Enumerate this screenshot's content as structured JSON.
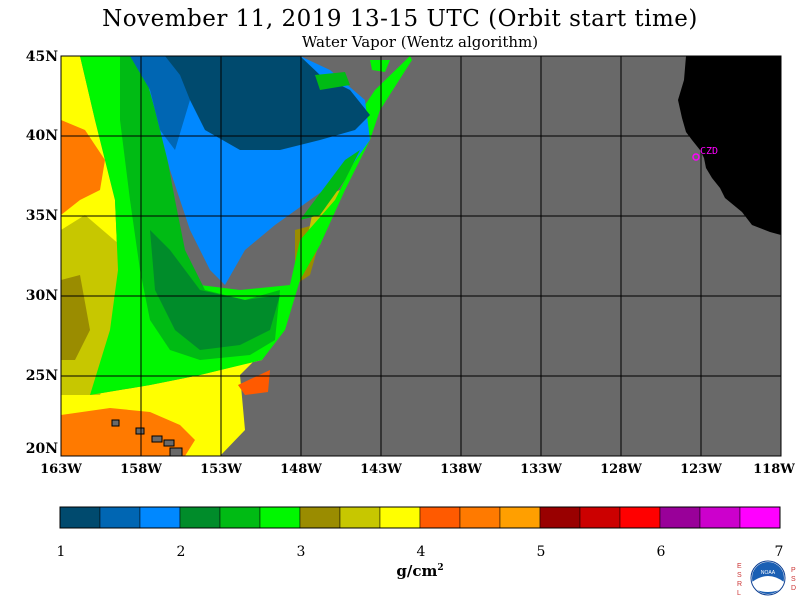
{
  "title": "November 11, 2019  13-15 UTC  (Orbit start time)",
  "subtitle": "Water Vapor (Wentz algorithm)",
  "lat_labels": [
    "45N",
    "40N",
    "35N",
    "30N",
    "25N",
    "20N"
  ],
  "lon_labels": [
    "163W",
    "158W",
    "153W",
    "148W",
    "143W",
    "138W",
    "133W",
    "128W",
    "123W",
    "118W"
  ],
  "station_label": "CZD",
  "colorbar": {
    "labels": [
      "1",
      "2",
      "3",
      "4",
      "5",
      "6",
      "7"
    ],
    "units": "g/cm",
    "units_exp": "2",
    "colors": [
      "#004a6e",
      "#0066b3",
      "#0088ff",
      "#008c2a",
      "#00bb14",
      "#00f700",
      "#9a8c00",
      "#c7c700",
      "#ffff00",
      "#ff5a00",
      "#ff7a00",
      "#ff9f00",
      "#990000",
      "#cc0000",
      "#ff0000",
      "#990099",
      "#cc00cc",
      "#ff00ff"
    ]
  },
  "map_colors": {
    "no_data": "#696969",
    "land": "#000000",
    "station": "#ff00ff"
  },
  "logo_letters_left": "ESRL",
  "logo_letters_right": "PSD",
  "logo_text": "NOAA"
}
